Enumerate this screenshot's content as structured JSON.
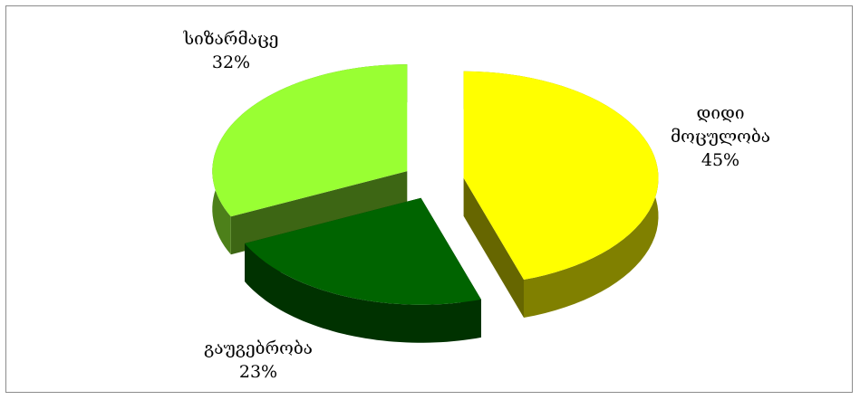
{
  "chart_data": {
    "type": "pie",
    "categories": [
      "დიდი მოცულობა",
      "გაუგებრობა",
      "სიზარმაცე"
    ],
    "values": [
      45,
      23,
      32
    ],
    "value_labels": [
      "45%",
      "23%",
      "32%"
    ],
    "colors": [
      "#ffff00",
      "#006400",
      "#99ff33"
    ]
  }
}
